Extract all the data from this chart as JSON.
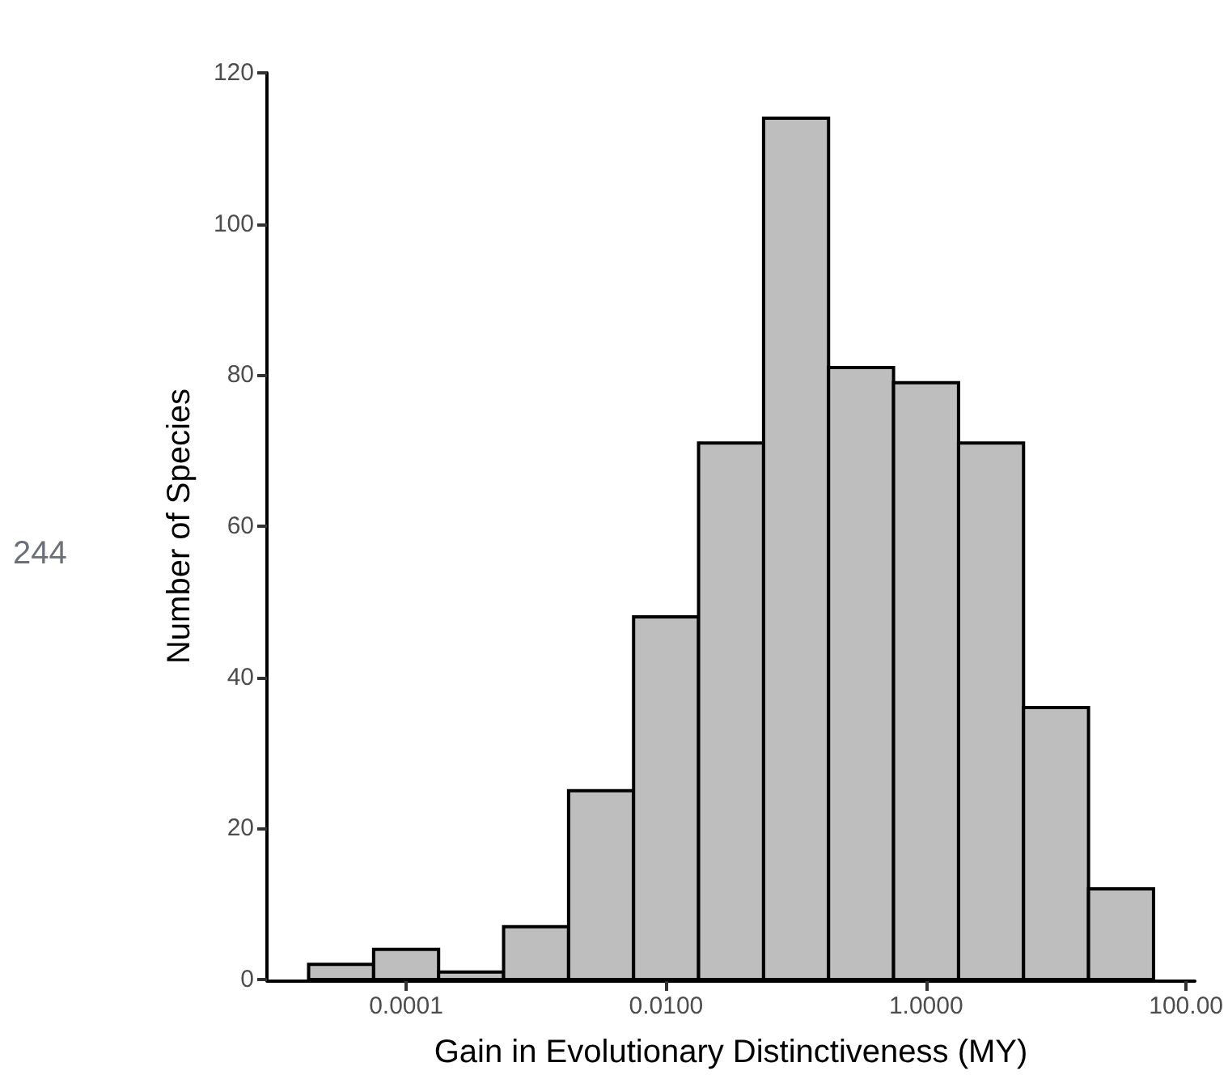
{
  "chart_data": {
    "type": "histogram",
    "xlabel": "Gain in Evolutionary Distinctiveness (MY)",
    "ylabel": "Number of Species",
    "annotations": [
      "244"
    ],
    "bins": [
      1.778e-05,
      5.623e-05,
      0.0001778,
      0.0005623,
      0.001778,
      0.005623,
      0.01778,
      0.05623,
      0.1778,
      0.5623,
      1.778,
      5.623,
      17.78,
      56.23
    ],
    "values": [
      2,
      4,
      1,
      7,
      25,
      48,
      71,
      114,
      81,
      79,
      71,
      36,
      12
    ],
    "color": "#bebebe",
    "log": "x",
    "xlim": [
      8.5e-06,
      117
    ],
    "xticks": [
      {
        "value": 0.0001,
        "label": "0.0001"
      },
      {
        "value": 0.01,
        "label": "0.0100"
      },
      {
        "value": 1,
        "label": "1.0000"
      },
      {
        "value": 100,
        "label": "100.00"
      }
    ],
    "ylim": [
      0,
      120
    ],
    "yticks": [
      0,
      20,
      40,
      60,
      80,
      100,
      120
    ]
  }
}
